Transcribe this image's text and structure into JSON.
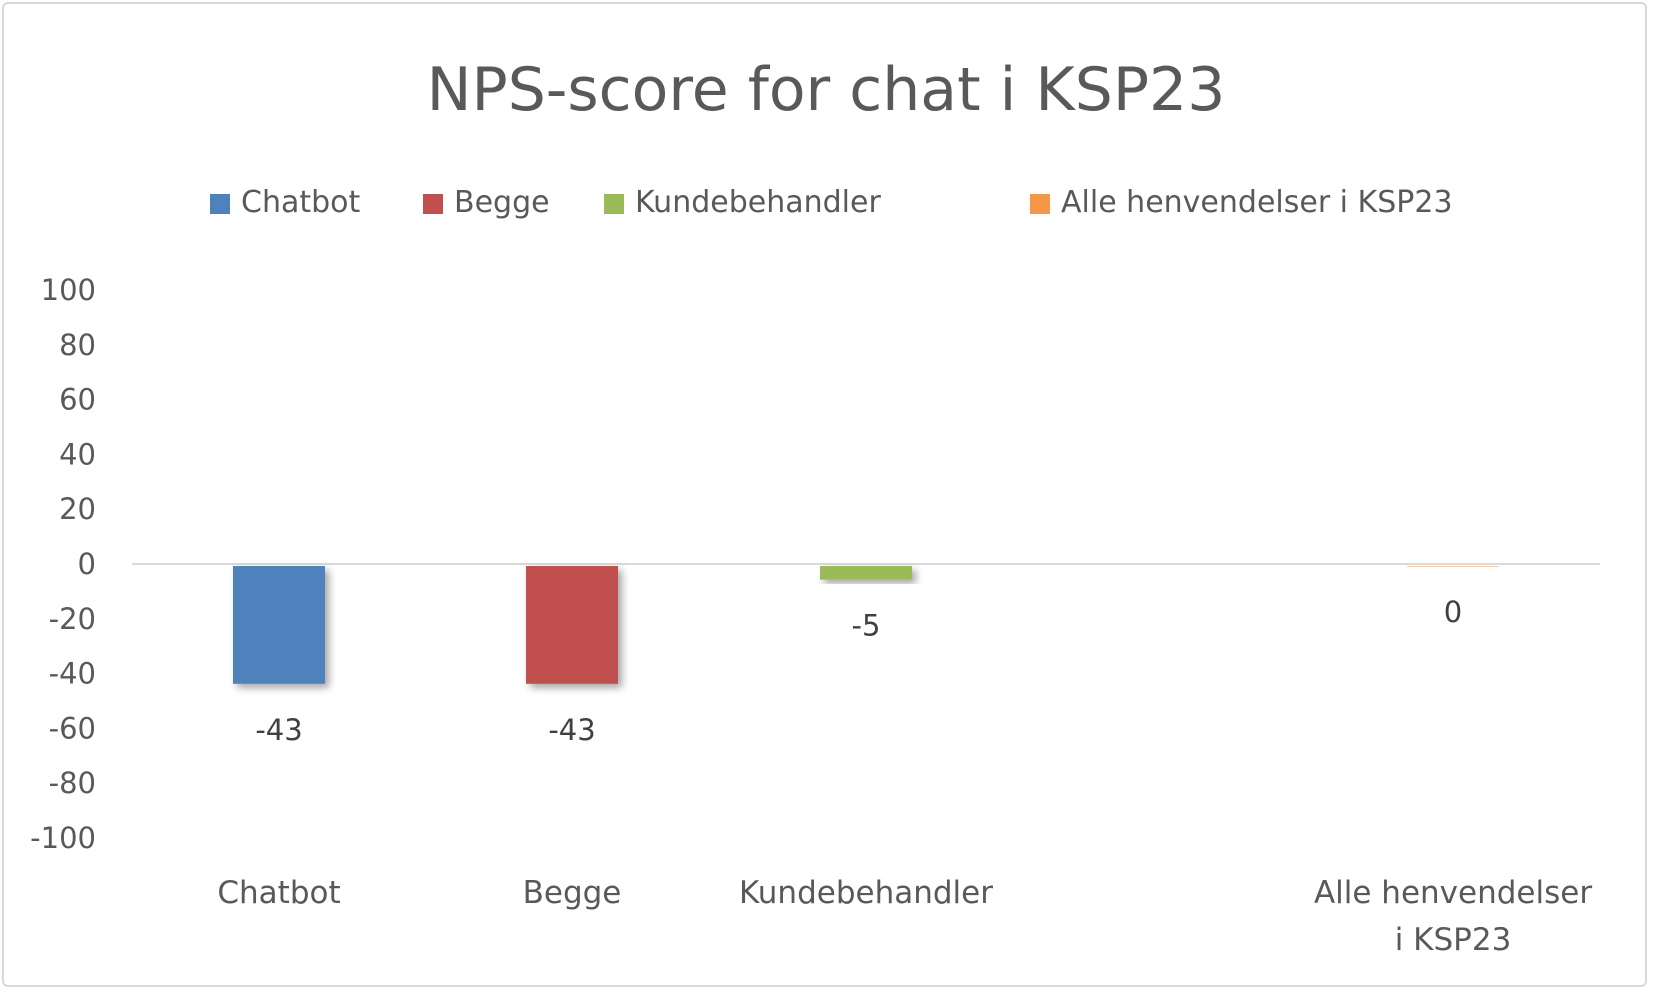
{
  "chart_data": {
    "type": "bar",
    "title": "NPS-score for chat i KSP23",
    "categories": [
      "Chatbot",
      "Begge",
      "Kundebehandler",
      "Alle henvendelser i KSP23"
    ],
    "category_label_lines": [
      [
        "Chatbot"
      ],
      [
        "Begge"
      ],
      [
        "Kundebehandler"
      ],
      [
        "Alle henvendelser",
        "i KSP23"
      ]
    ],
    "values": [
      -43,
      -43,
      -5,
      0
    ],
    "data_labels": [
      "-43",
      "-43",
      "-5",
      "0"
    ],
    "colors": [
      "#4f81bd",
      "#c0504d",
      "#9bbb59",
      "#f79646"
    ],
    "legend": {
      "position": "top",
      "entries": [
        "Chatbot",
        "Begge",
        "Kundebehandler",
        "Alle henvendelser i KSP23"
      ]
    },
    "xlabel": "",
    "ylabel": "",
    "ylim": [
      -100,
      100
    ],
    "yticks": [
      100,
      80,
      60,
      40,
      20,
      0,
      -20,
      -40,
      -60,
      -80,
      -100
    ],
    "ytick_labels": [
      "100",
      "80",
      "60",
      "40",
      "20",
      "0",
      "-20",
      "-40",
      "-60",
      "-80",
      "-100"
    ],
    "grid": false
  }
}
